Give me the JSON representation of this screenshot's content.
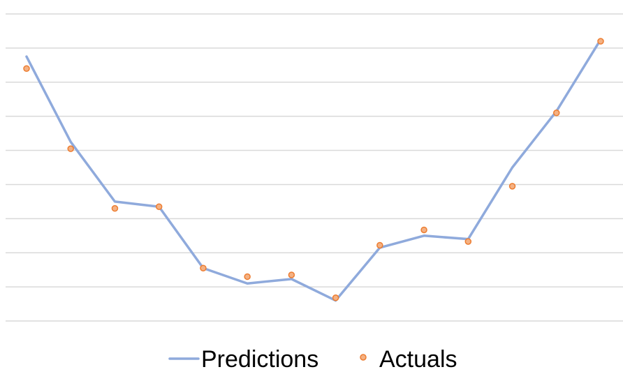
{
  "chart_data": {
    "type": "line",
    "x": [
      1,
      2,
      3,
      4,
      5,
      6,
      7,
      8,
      9,
      10,
      11,
      12,
      13,
      14
    ],
    "ylim": [
      0,
      9
    ],
    "grid": true,
    "legend_position": "bottom",
    "series": [
      {
        "name": "Predictions",
        "style": "line",
        "color": "#8faadc",
        "values": [
          7.75,
          5.25,
          3.5,
          3.35,
          1.55,
          1.1,
          1.23,
          0.6,
          2.15,
          2.5,
          2.4,
          4.5,
          6.15,
          8.25
        ]
      },
      {
        "name": "Actuals",
        "style": "markers",
        "color": "#ed7d31",
        "values": [
          7.4,
          5.05,
          3.3,
          3.35,
          1.55,
          1.3,
          1.35,
          0.68,
          2.22,
          2.67,
          2.33,
          3.95,
          6.1,
          8.2
        ]
      }
    ]
  }
}
